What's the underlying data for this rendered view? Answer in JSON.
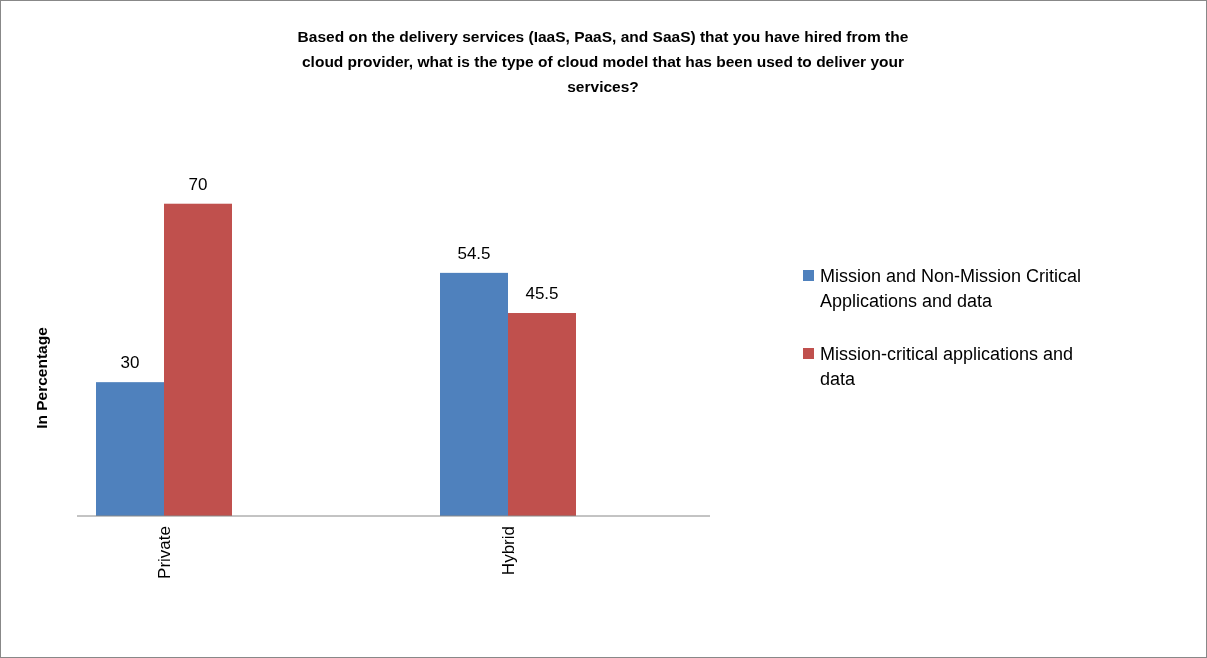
{
  "chart_data": {
    "type": "bar",
    "title": "Based on the delivery services (IaaS, PaaS, and SaaS) that you have hired from the cloud provider, what is the type of cloud model  that has been used to deliver your services?",
    "ylabel": "In Percentage",
    "categories": [
      "Private",
      "Hybrid"
    ],
    "series": [
      {
        "name": "Mission and Non-Mission Critical Applications and data",
        "color": "#4f81bd",
        "values": [
          30,
          54.5
        ]
      },
      {
        "name": "Mission-critical applications and data",
        "color": "#c0504d",
        "values": [
          70,
          45.5
        ]
      }
    ],
    "data_labels": true,
    "legend": "right"
  }
}
